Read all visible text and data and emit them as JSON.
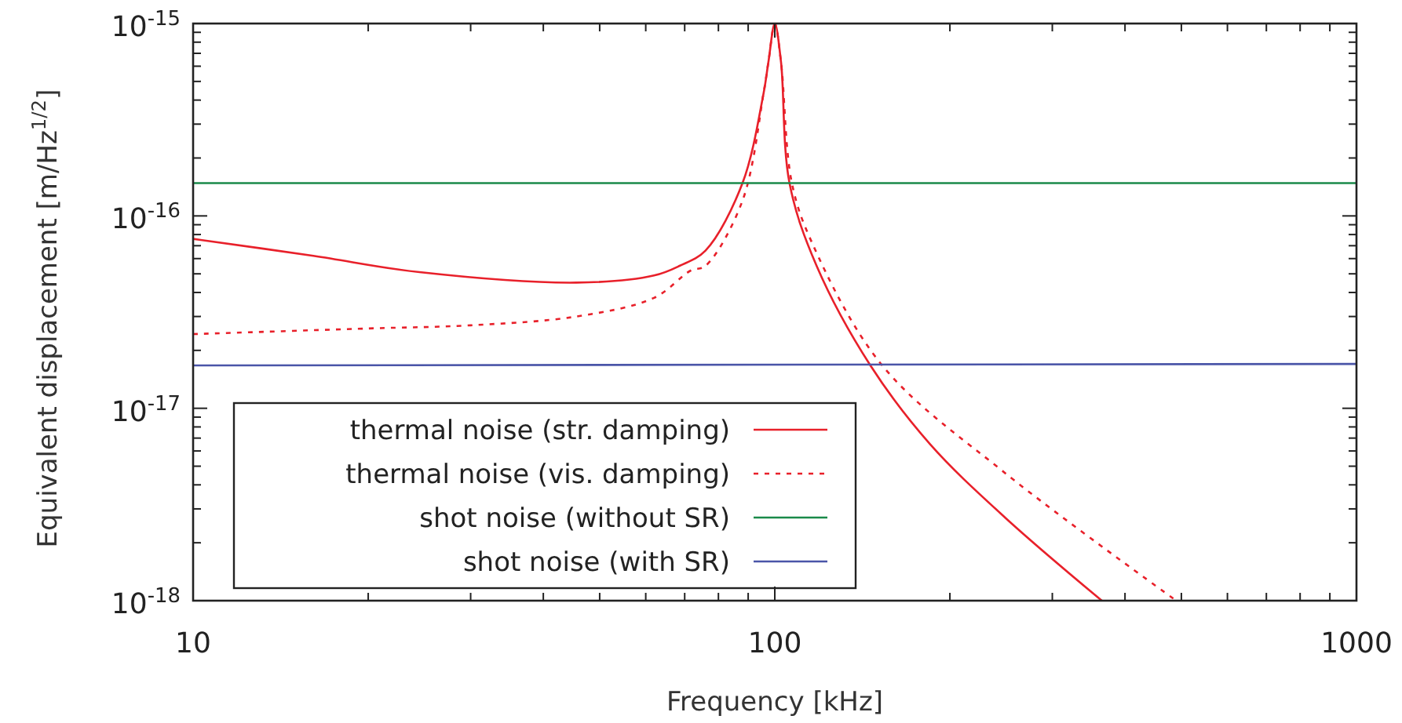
{
  "chart_data": {
    "type": "line",
    "xlabel": "Frequency [kHz]",
    "ylabel": "Equivalent displacement [m/Hz$^{1/2}$]",
    "log": "xy",
    "xlim": [
      10,
      1000
    ],
    "ylim": [
      1e-18,
      1e-15
    ],
    "xticks": [
      10,
      {
        "value": 20,
        "label": null
      },
      {
        "value": 30,
        "label": null
      },
      {
        "value": 40,
        "label": null
      },
      {
        "value": 50,
        "label": null
      },
      {
        "value": 60,
        "label": null
      },
      {
        "value": 70,
        "label": null
      },
      {
        "value": 80,
        "label": null
      },
      {
        "value": 90,
        "label": null
      },
      100,
      {
        "value": 200,
        "label": null
      },
      {
        "value": 300,
        "label": null
      },
      {
        "value": 400,
        "label": null
      },
      {
        "value": 500,
        "label": null
      },
      {
        "value": 600,
        "label": null
      },
      {
        "value": 700,
        "label": null
      },
      {
        "value": 800,
        "label": null
      },
      {
        "value": 900,
        "label": null
      },
      1000
    ],
    "yticks": [
      {
        "value": 1e-18,
        "label": "10$^{-18}$"
      },
      {
        "value": 2e-18,
        "label": null
      },
      {
        "value": 3e-18,
        "label": null
      },
      {
        "value": 4e-18,
        "label": null
      },
      {
        "value": 5e-18,
        "label": null
      },
      {
        "value": 6e-18,
        "label": null
      },
      {
        "value": 7e-18,
        "label": null
      },
      {
        "value": 8e-18,
        "label": null
      },
      {
        "value": 9e-18,
        "label": null
      },
      {
        "value": 1e-17,
        "label": "10$^{-17}$"
      },
      {
        "value": 2e-17,
        "label": null
      },
      {
        "value": 3e-17,
        "label": null
      },
      {
        "value": 4e-17,
        "label": null
      },
      {
        "value": 5e-17,
        "label": null
      },
      {
        "value": 6e-17,
        "label": null
      },
      {
        "value": 7e-17,
        "label": null
      },
      {
        "value": 8e-17,
        "label": null
      },
      {
        "value": 9e-17,
        "label": null
      },
      {
        "value": 1e-16,
        "label": "10$^{-16}$"
      },
      {
        "value": 2e-16,
        "label": null
      },
      {
        "value": 3e-16,
        "label": null
      },
      {
        "value": 4e-16,
        "label": null
      },
      {
        "value": 5e-16,
        "label": null
      },
      {
        "value": 6e-16,
        "label": null
      },
      {
        "value": 7e-16,
        "label": null
      },
      {
        "value": 8e-16,
        "label": null
      },
      {
        "value": 9e-16,
        "label": null
      },
      {
        "value": 1e-15,
        "label": "10$^{-15}$"
      }
    ],
    "grid": false,
    "legend": "bottom left",
    "series": [
      {
        "name": "thermal noise (str. damping)",
        "color": "#e8202a",
        "line_style": "solid",
        "x": [
          10,
          16.1,
          24.5,
          45.6,
          62,
          68.6,
          76,
          88,
          95.6,
          97.5,
          100,
          102.5,
          106,
          118,
          146,
          185,
          249,
          365
        ],
        "values": [
          7.6e-17,
          6.2e-17,
          5.1e-17,
          4.5e-17,
          4.9e-17,
          5.5e-17,
          6.6e-17,
          1.48e-16,
          4.3e-16,
          6.3e-16,
          1e-15,
          6.3e-16,
          1.48e-16,
          5.5e-17,
          1.67e-17,
          6.5e-18,
          2.7e-18,
          1e-18
        ]
      },
      {
        "name": "thermal noise (vis. damping)",
        "color": "#e8202a",
        "line_style": "dotted",
        "x": [
          10,
          20,
          30,
          45.6,
          62,
          71.7,
          76,
          88,
          95.6,
          97.5,
          100,
          102.5,
          107,
          116,
          153,
          249,
          490
        ],
        "values": [
          2.43e-17,
          2.6e-17,
          2.7e-17,
          3e-17,
          3.75e-17,
          5.2e-17,
          5.5e-17,
          1.2e-16,
          4.3e-16,
          6.3e-16,
          1e-15,
          6.3e-16,
          1.48e-16,
          7.2e-17,
          1.67e-17,
          4.6e-18,
          1e-18
        ]
      },
      {
        "name": "shot noise (without SR)",
        "color": "#1a8a4a",
        "line_style": "solid",
        "x": [
          10,
          1000
        ],
        "values": [
          1.48e-16,
          1.48e-16
        ]
      },
      {
        "name": "shot noise (with SR)",
        "color": "#4a55a8",
        "line_style": "solid",
        "x": [
          10,
          1000
        ],
        "values": [
          1.67e-17,
          1.7e-17
        ]
      }
    ]
  }
}
